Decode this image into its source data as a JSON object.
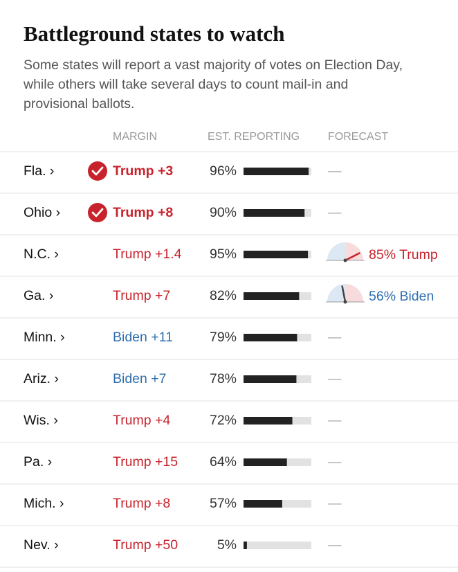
{
  "header": {
    "title": "Battleground states to watch",
    "subtitle": [
      "Some states will report a vast majority of votes on Election Day,",
      "while others will take several days to count mail-in and",
      "provisional ballots."
    ]
  },
  "table": {
    "columns": [
      "MARGIN",
      "EST. REPORTING",
      "FORECAST"
    ],
    "rows": [
      {
        "state": "Fla. ›",
        "margin": "Trump +3",
        "color": "#c8232c",
        "called": true,
        "reporting": {
          "value": 96,
          "label": "96%"
        },
        "forecast": "—"
      },
      {
        "state": "Ohio ›",
        "margin": "Trump +8",
        "color": "#c8232c",
        "called": true,
        "reporting": {
          "value": 90,
          "label": "90%"
        },
        "forecast": "—"
      },
      {
        "state": "N.C. ›",
        "margin": "Trump +1.4",
        "color": "#c8232c",
        "called": false,
        "reporting": {
          "value": 95,
          "label": "95%"
        },
        "forecast": {
          "value": 85,
          "label": "85% Trump",
          "side": "right"
        }
      },
      {
        "state": "Ga. ›",
        "margin": "Trump +7",
        "color": "#c8232c",
        "called": false,
        "reporting": {
          "value": 82,
          "label": "82%"
        },
        "forecast": {
          "value": 56,
          "label": "56% Biden",
          "side": "left"
        }
      },
      {
        "state": "Minn. ›",
        "margin": "Biden +11",
        "color": "#2f6fb0",
        "called": false,
        "reporting": {
          "value": 79,
          "label": "79%"
        },
        "forecast": "—"
      },
      {
        "state": "Ariz. ›",
        "margin": "Biden +7",
        "color": "#2f6fb0",
        "called": false,
        "reporting": {
          "value": 78,
          "label": "78%"
        },
        "forecast": "—"
      },
      {
        "state": "Wis. ›",
        "margin": "Trump +4",
        "color": "#c8232c",
        "called": false,
        "reporting": {
          "value": 72,
          "label": "72%"
        },
        "forecast": "—"
      },
      {
        "state": "Pa. ›",
        "margin": "Trump +15",
        "color": "#c8232c",
        "called": false,
        "reporting": {
          "value": 64,
          "label": "64%"
        },
        "forecast": "—"
      },
      {
        "state": "Mich. ›",
        "margin": "Trump +8",
        "color": "#c8232c",
        "called": false,
        "reporting": {
          "value": 57,
          "label": "57%"
        },
        "forecast": "—"
      },
      {
        "state": "Nev. ›",
        "margin": "Trump +50",
        "color": "#c8232c",
        "called": false,
        "reporting": {
          "value": 5,
          "label": "5%"
        },
        "forecast": "—"
      }
    ]
  }
}
